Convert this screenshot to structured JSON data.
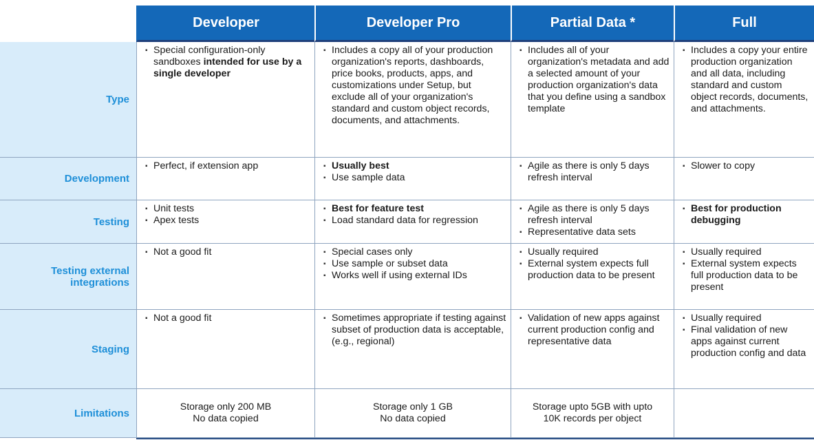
{
  "headers": [
    "Developer",
    "Developer Pro",
    "Partial Data *",
    "Full"
  ],
  "rows": [
    {
      "label": "Type",
      "cells": [
        {
          "items": [
            {
              "pre": "Special configuration-only sandboxes ",
              "bold": "intended for use by a single developer",
              "post": ""
            }
          ]
        },
        {
          "items": [
            {
              "pre": "Includes a copy all of your production organization's reports, dashboards, price books, products, apps, and customizations under Setup, but exclude all of your organization's standard and custom object records, documents, and attachments.",
              "bold": "",
              "post": ""
            }
          ]
        },
        {
          "items": [
            {
              "pre": "Includes all of your organization's metadata and add a selected amount of your production organization's data that you define using a sandbox template",
              "bold": "",
              "post": ""
            }
          ]
        },
        {
          "items": [
            {
              "pre": "Includes a copy your entire production organization and all data, including standard and custom object records, documents, and attachments.",
              "bold": "",
              "post": ""
            }
          ]
        }
      ]
    },
    {
      "label": "Development",
      "cells": [
        {
          "items": [
            {
              "pre": "Perfect, if extension app",
              "bold": "",
              "post": ""
            }
          ]
        },
        {
          "items": [
            {
              "pre": "",
              "bold": "Usually best",
              "post": ""
            },
            {
              "pre": "Use sample data",
              "bold": "",
              "post": ""
            }
          ]
        },
        {
          "items": [
            {
              "pre": "Agile as there is only 5 days refresh interval",
              "bold": "",
              "post": ""
            }
          ]
        },
        {
          "items": [
            {
              "pre": "Slower to copy",
              "bold": "",
              "post": ""
            }
          ]
        }
      ]
    },
    {
      "label": "Testing",
      "cells": [
        {
          "items": [
            {
              "pre": "Unit tests",
              "bold": "",
              "post": ""
            },
            {
              "pre": "Apex tests",
              "bold": "",
              "post": ""
            }
          ]
        },
        {
          "items": [
            {
              "pre": "",
              "bold": "Best for feature test",
              "post": ""
            },
            {
              "pre": "Load standard data for regression",
              "bold": "",
              "post": ""
            }
          ]
        },
        {
          "items": [
            {
              "pre": "Agile as there is only 5 days refresh interval",
              "bold": "",
              "post": ""
            },
            {
              "pre": "Representative data sets",
              "bold": "",
              "post": ""
            }
          ]
        },
        {
          "items": [
            {
              "pre": "",
              "bold": "Best for production debugging",
              "post": ""
            }
          ]
        }
      ]
    },
    {
      "label": "Testing external integrations",
      "cells": [
        {
          "items": [
            {
              "pre": "Not a good fit",
              "bold": "",
              "post": ""
            }
          ]
        },
        {
          "items": [
            {
              "pre": "Special cases only",
              "bold": "",
              "post": ""
            },
            {
              "pre": "Use sample or subset data",
              "bold": "",
              "post": ""
            },
            {
              "pre": "Works well if using external IDs",
              "bold": "",
              "post": ""
            }
          ]
        },
        {
          "items": [
            {
              "pre": "Usually required",
              "bold": "",
              "post": ""
            },
            {
              "pre": "External system expects full production data to be present",
              "bold": "",
              "post": ""
            }
          ]
        },
        {
          "items": [
            {
              "pre": "Usually required",
              "bold": "",
              "post": ""
            },
            {
              "pre": "External system expects full production data to be present",
              "bold": "",
              "post": ""
            }
          ]
        }
      ]
    },
    {
      "label": "Staging",
      "cells": [
        {
          "items": [
            {
              "pre": "Not a good fit",
              "bold": "",
              "post": ""
            }
          ]
        },
        {
          "items": [
            {
              "pre": "Sometimes appropriate if testing against subset of production data is acceptable, (e.g., regional)",
              "bold": "",
              "post": ""
            }
          ]
        },
        {
          "items": [
            {
              "pre": "Validation of new apps against current production config and representative data",
              "bold": "",
              "post": ""
            }
          ]
        },
        {
          "items": [
            {
              "pre": "Usually required",
              "bold": "",
              "post": ""
            },
            {
              "pre": "Final validation of new apps against current production config and data",
              "bold": "",
              "post": ""
            }
          ]
        }
      ]
    }
  ],
  "limitations": {
    "label": "Limitations",
    "cells": [
      [
        "Storage only 200 MB",
        "No data copied"
      ],
      [
        "Storage only 1 GB",
        "No data copied"
      ],
      [
        "Storage upto 5GB with upto",
        "10K records per object"
      ],
      []
    ]
  }
}
